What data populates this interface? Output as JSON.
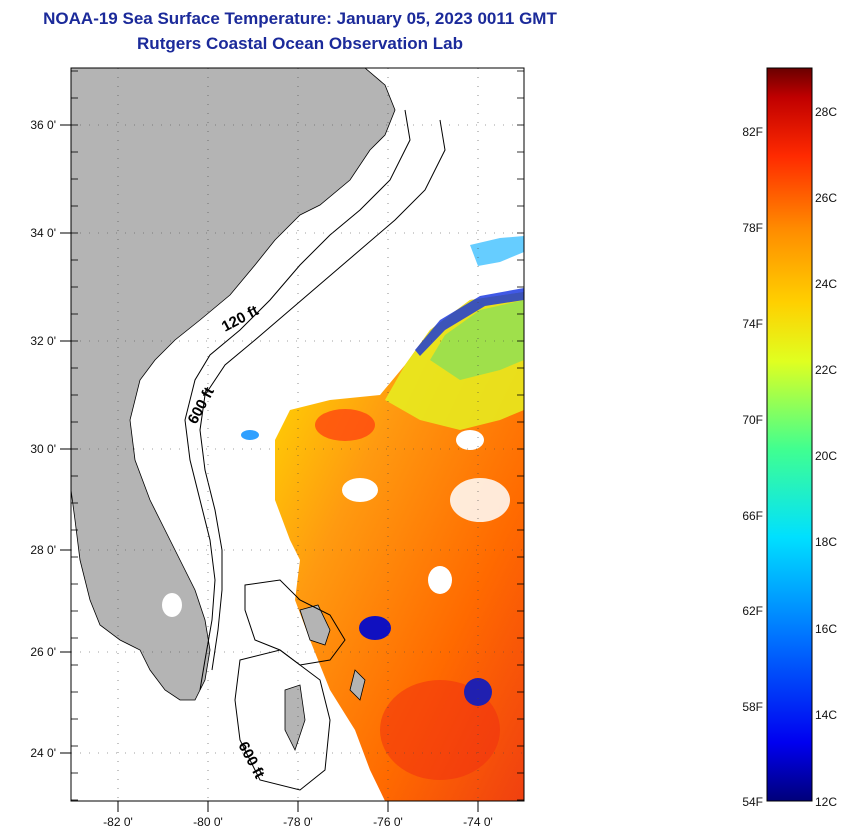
{
  "header": {
    "title": "NOAA-19 Sea Surface Temperature:  January 05, 2023 0011 GMT",
    "subtitle": "Rutgers Coastal Ocean Observation Lab"
  },
  "map": {
    "lat_labels": [
      "36 0'",
      "34 0'",
      "32 0'",
      "30 0'",
      "28 0'",
      "26 0'",
      "24 0'"
    ],
    "lon_labels": [
      "-82 0'",
      "-80 0'",
      "-78 0'",
      "-76 0'",
      "-74 0'"
    ],
    "contour_labels": [
      "120 ft",
      "600 ft",
      "600 ft"
    ],
    "land_color": "#b4b4b4",
    "ocean_color": "#ffffff"
  },
  "colorbar": {
    "fahrenheit_labels": [
      "82F",
      "78F",
      "74F",
      "70F",
      "66F",
      "62F",
      "58F",
      "54F"
    ],
    "celsius_labels": [
      "28C",
      "26C",
      "24C",
      "22C",
      "20C",
      "18C",
      "16C",
      "14C",
      "12C"
    ]
  }
}
